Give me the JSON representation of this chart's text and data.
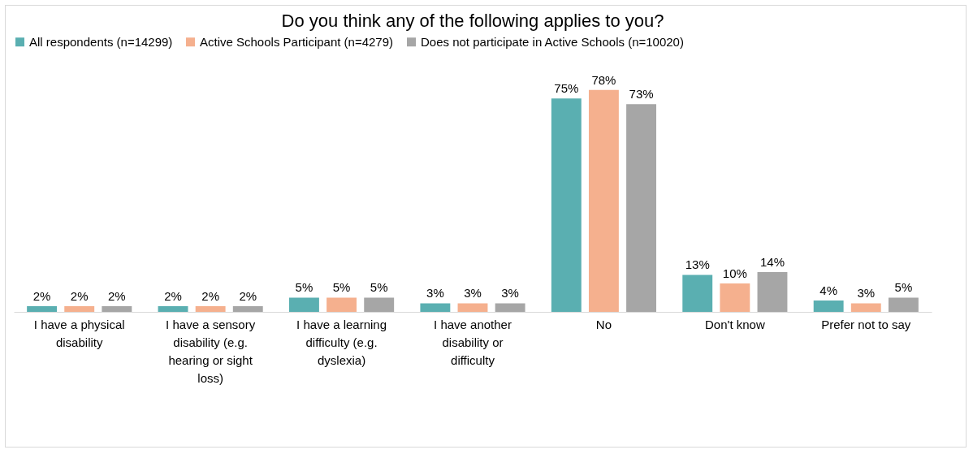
{
  "chart_data": {
    "type": "bar",
    "title": "Do you think any of the following applies to you?",
    "categories": [
      "I have a physical disability",
      "I have a sensory disability (e.g. hearing or sight loss)",
      "I have a learning difficulty (e.g. dyslexia)",
      "I have another disability or difficulty",
      "No",
      "Don't know",
      "Prefer not to say"
    ],
    "series": [
      {
        "name": "All respondents (n=14299)",
        "color": "#5aafb1",
        "values": [
          2,
          2,
          5,
          3,
          75,
          13,
          4
        ],
        "value_labels": [
          "2%",
          "2%",
          "5%",
          "3%",
          "75%",
          "13%",
          "4%"
        ]
      },
      {
        "name": "Active Schools Participant (n=4279)",
        "color": "#f5b08e",
        "values": [
          2,
          2,
          5,
          3,
          78,
          10,
          3
        ],
        "value_labels": [
          "2%",
          "2%",
          "5%",
          "3%",
          "78%",
          "10%",
          "3%"
        ]
      },
      {
        "name": "Does not participate in Active Schools (n=10020)",
        "color": "#a6a6a6",
        "values": [
          2,
          2,
          5,
          3,
          73,
          14,
          5
        ],
        "value_labels": [
          "2%",
          "2%",
          "5%",
          "3%",
          "73%",
          "14%",
          "5%"
        ]
      }
    ],
    "legend": "top",
    "grid": false
  }
}
